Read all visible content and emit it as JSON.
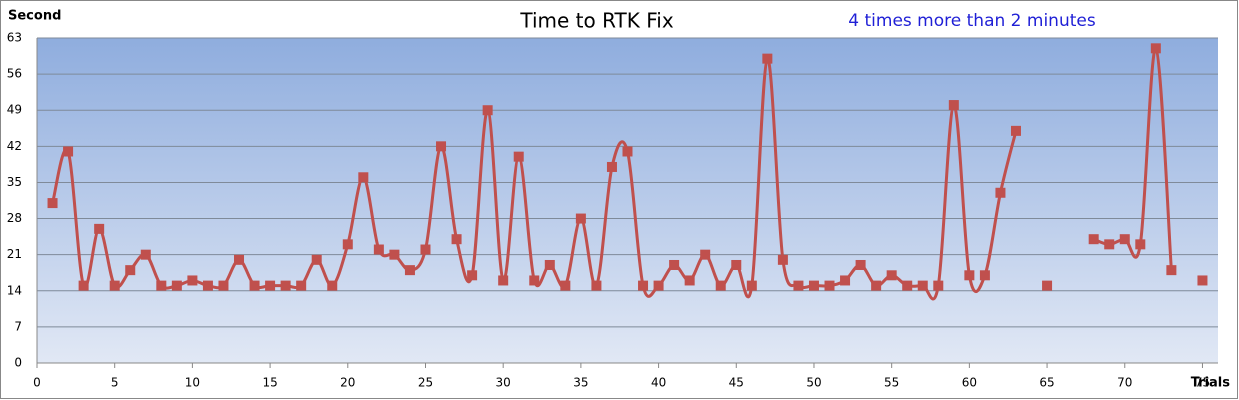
{
  "chart_data": {
    "type": "line",
    "title": "Time to RTK Fix",
    "annotation": "4 times more than 2 minutes",
    "y_label": "Second",
    "x_label": "Trials",
    "x": [
      1,
      2,
      3,
      4,
      5,
      6,
      7,
      8,
      9,
      10,
      11,
      12,
      13,
      14,
      15,
      16,
      17,
      18,
      19,
      20,
      21,
      22,
      23,
      24,
      25,
      26,
      27,
      28,
      29,
      30,
      31,
      32,
      33,
      34,
      35,
      36,
      37,
      38,
      39,
      40,
      41,
      42,
      43,
      44,
      45,
      46,
      47,
      48,
      49,
      50,
      51,
      52,
      53,
      54,
      55,
      56,
      57,
      58,
      59,
      60,
      61,
      62,
      63,
      64,
      65,
      66,
      67,
      68,
      69,
      70,
      71,
      72,
      73,
      74,
      75
    ],
    "values": [
      31,
      41,
      15,
      26,
      15,
      18,
      21,
      15,
      15,
      16,
      15,
      15,
      20,
      15,
      15,
      15,
      15,
      20,
      15,
      23,
      36,
      22,
      21,
      18,
      22,
      42,
      24,
      17,
      49,
      16,
      40,
      16,
      19,
      15,
      28,
      15,
      38,
      41,
      15,
      15,
      19,
      16,
      21,
      15,
      19,
      15,
      59,
      20,
      15,
      15,
      15,
      16,
      19,
      15,
      17,
      15,
      15,
      15,
      50,
      17,
      17,
      33,
      45,
      null,
      15,
      null,
      null,
      24,
      23,
      24,
      23,
      61,
      18,
      null,
      16
    ],
    "color": "#c0504d",
    "annotation_color": "#1f1fd6",
    "xlim": [
      0,
      76
    ],
    "xticks": [
      0,
      5,
      10,
      15,
      20,
      25,
      30,
      35,
      40,
      45,
      50,
      55,
      60,
      65,
      70,
      75
    ],
    "ylim": [
      0,
      63
    ],
    "yticks": [
      0,
      7,
      14,
      21,
      28,
      35,
      42,
      49,
      56,
      63
    ],
    "grid": true
  }
}
